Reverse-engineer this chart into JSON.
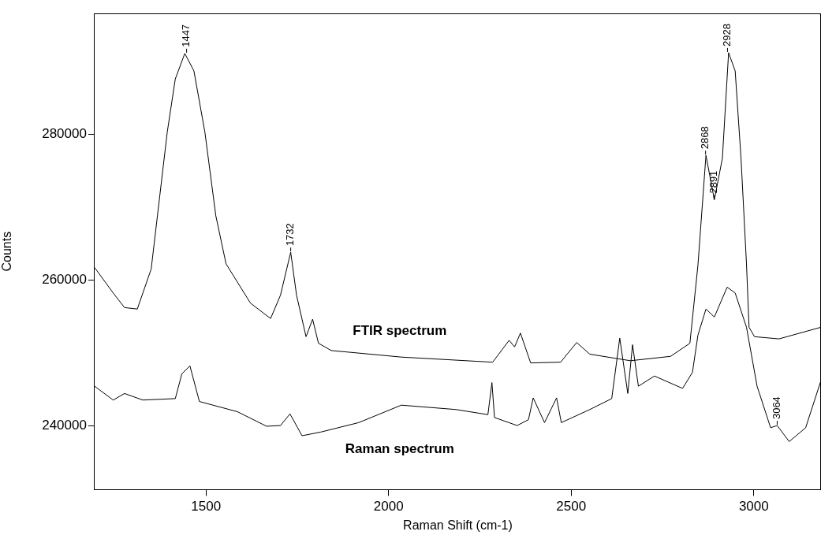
{
  "chart_data": {
    "type": "line",
    "xlabel": "Raman Shift (cm-1)",
    "ylabel": "Counts",
    "xlim": [
      1195,
      3184
    ],
    "ylim": [
      231200,
      296600
    ],
    "xticks": [
      1500,
      2000,
      2500,
      3000
    ],
    "yticks": [
      240000,
      260000,
      280000
    ],
    "grid": false,
    "legend": false,
    "marker": "none",
    "line_style": "solid",
    "series": [
      {
        "name": "FTIR spectrum",
        "color": "#000000",
        "x": [
          1195,
          1246,
          1277,
          1312,
          1350,
          1394,
          1416,
          1442,
          1467,
          1497,
          1527,
          1555,
          1622,
          1677,
          1704,
          1732,
          1748,
          1774,
          1792,
          1808,
          1843,
          2035,
          2285,
          2330,
          2345,
          2361,
          2389,
          2471,
          2515,
          2551,
          2662,
          2772,
          2825,
          2847,
          2869,
          2892,
          2914,
          2931,
          2949,
          2965,
          2980,
          2987,
          3002,
          3069,
          3184
        ],
        "values": [
          261700,
          258200,
          256200,
          256000,
          261500,
          280300,
          287600,
          291100,
          288700,
          280300,
          268800,
          262200,
          256800,
          254700,
          257900,
          263800,
          257900,
          252200,
          254600,
          251300,
          250300,
          249400,
          248700,
          251700,
          250800,
          252700,
          248600,
          248700,
          251400,
          249800,
          248900,
          249500,
          251300,
          262000,
          277100,
          271000,
          276700,
          291200,
          288700,
          276700,
          262200,
          253500,
          252200,
          251900,
          253500
        ]
      },
      {
        "name": "Raman spectrum",
        "color": "#000000",
        "x": [
          1195,
          1246,
          1277,
          1327,
          1416,
          1434,
          1456,
          1482,
          1586,
          1666,
          1704,
          1730,
          1763,
          1814,
          1918,
          2035,
          2184,
          2272,
          2283,
          2290,
          2352,
          2383,
          2396,
          2427,
          2460,
          2473,
          2551,
          2611,
          2633,
          2655,
          2668,
          2684,
          2728,
          2805,
          2832,
          2847,
          2869,
          2892,
          2927,
          2949,
          2980,
          3009,
          3046,
          3064,
          3097,
          3142,
          3184
        ],
        "values": [
          245400,
          243500,
          244400,
          243500,
          243700,
          247100,
          248200,
          243300,
          241900,
          239900,
          240000,
          241600,
          238600,
          239100,
          240400,
          242800,
          242200,
          241500,
          245900,
          241100,
          240000,
          240800,
          243800,
          240400,
          243800,
          240400,
          242200,
          243700,
          252000,
          244400,
          251100,
          245400,
          246800,
          245100,
          247300,
          252400,
          256000,
          254900,
          259000,
          258200,
          253500,
          245400,
          239700,
          240000,
          237800,
          239700,
          246200
        ]
      }
    ],
    "annotations": [
      {
        "text": "1447",
        "x": 1447,
        "y": 291100
      },
      {
        "text": "1732",
        "x": 1732,
        "y": 263800
      },
      {
        "text": "2868",
        "x": 2868,
        "y": 277100
      },
      {
        "text": "2891",
        "x": 2891,
        "y": 271000
      },
      {
        "text": "2928",
        "x": 2928,
        "y": 291200
      },
      {
        "text": "3064",
        "x": 3064,
        "y": 240000
      }
    ]
  }
}
